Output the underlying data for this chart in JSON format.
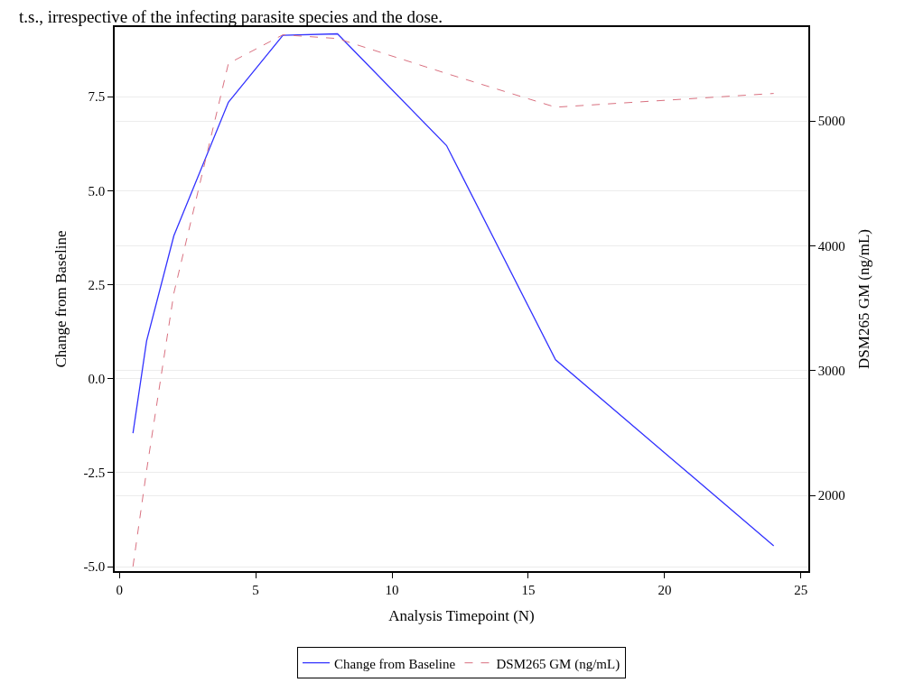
{
  "chart_data": {
    "type": "line",
    "annotations": [
      "t.s., irrespective of the infecting parasite species and the dose."
    ],
    "xlabel": "Analysis Timepoint (N)",
    "ylabel": "Change from Baseline",
    "y2label": "DSM265 GM (ng/mL)",
    "series": [
      {
        "name": "Change from Baseline",
        "color": "#3333ff",
        "line_style": "solid",
        "x": [
          0.5,
          1,
          2,
          4,
          6,
          8,
          12,
          16,
          24
        ],
        "values": [
          -1.45,
          1.0,
          3.8,
          7.35,
          9.13,
          9.17,
          6.2,
          0.5,
          -4.45
        ]
      },
      {
        "name": "DSM265 GM (ng/mL)",
        "color": "#d9707f",
        "line_style": "dashed",
        "axis": "y2",
        "x": [
          0.5,
          1,
          2,
          4,
          6,
          8,
          12,
          16,
          24
        ],
        "values": [
          1430,
          2200,
          3620,
          5460,
          5690,
          5660,
          5380,
          5110,
          5220
        ]
      }
    ],
    "xlim": [
      -0.17,
      25.27
    ],
    "xticks": [
      0,
      5,
      10,
      15,
      20,
      25
    ],
    "ylim": [
      -5.12,
      9.35
    ],
    "yticks": [
      {
        "value": -5,
        "label": "-5.0"
      },
      {
        "value": -2.5,
        "label": "-2.5"
      },
      {
        "value": 0,
        "label": "0.0"
      },
      {
        "value": 2.5,
        "label": "2.5"
      },
      {
        "value": 5,
        "label": "5.0"
      },
      {
        "value": 7.5,
        "label": "7.5"
      }
    ],
    "y2lim": [
      1393,
      5752
    ],
    "y2ticks": [
      2000,
      3000,
      4000,
      5000
    ],
    "grid": "y",
    "legend": "bottom",
    "marker": "none"
  }
}
